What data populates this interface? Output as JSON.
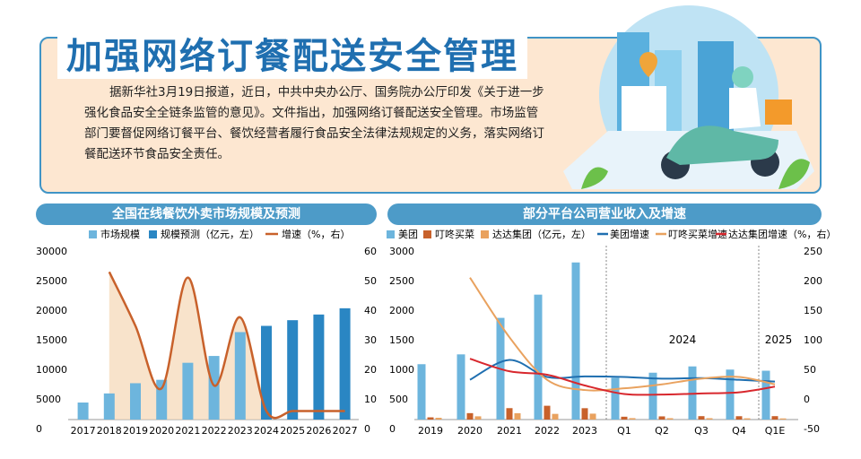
{
  "article": {
    "headline": "加强网络订餐配送安全管理",
    "body": "据新华社3月19日报道，近日，中共中央办公厅、国务院办公厅印发《关于进一步强化食品安全全链条监管的意见》。文件指出，加强网络订餐配送安全管理。市场监管部门要督促网络订餐平台、餐饮经营者履行食品安全法律法规规定的义务，落实网络订餐配送环节食品安全责任。"
  },
  "colors": {
    "blue": "#1f6fb0",
    "light_blue": "#6db5dd",
    "dark_blue": "#2a86c3",
    "orange": "#d98a3d",
    "dark_orange": "#c8612b",
    "red": "#d8272d",
    "peach": "#fde7d1"
  },
  "chart_data": [
    {
      "type": "bar",
      "title": "全国在线餐饮外卖市场规模及预测",
      "legend": [
        "市场规模",
        "规模预测（亿元，左）",
        "增速（%，右）"
      ],
      "categories": [
        "2017",
        "2018",
        "2019",
        "2020",
        "2021",
        "2022",
        "2023",
        "2024",
        "2025",
        "2026",
        "2027"
      ],
      "series": [
        {
          "name": "市场规模",
          "values": [
            3000,
            4600,
            6400,
            7000,
            10000,
            11200,
            15400,
            null,
            null,
            null,
            null
          ]
        },
        {
          "name": "规模预测",
          "values": [
            null,
            null,
            null,
            null,
            null,
            null,
            null,
            16500,
            17500,
            18500,
            19600
          ]
        },
        {
          "name": "增速",
          "axis": "right",
          "values": [
            null,
            52,
            33,
            11,
            50,
            12,
            36,
            3,
            3,
            3,
            3
          ]
        }
      ],
      "y_left_ticks": [
        "30000",
        "25000",
        "20000",
        "15000",
        "10000",
        "5000",
        "0"
      ],
      "y_right_ticks": [
        "60",
        "50",
        "40",
        "30",
        "20",
        "10",
        "0"
      ],
      "ylim_left": [
        0,
        30000
      ],
      "ylim_right": [
        0,
        60
      ]
    },
    {
      "type": "bar",
      "title": "部分平台公司营业收入及增速",
      "legend": [
        "美团",
        "叮咚买菜",
        "达达集团（亿元，左）",
        "美团增速",
        "叮咚买菜增速",
        "达达集团增速（%，右）"
      ],
      "categories": [
        "2019",
        "2020",
        "2021",
        "2022",
        "2023",
        "Q1",
        "Q2",
        "Q3",
        "Q4",
        "Q1E"
      ],
      "group_labels": [
        "2024",
        "2025"
      ],
      "series": [
        {
          "name": "美团",
          "values": [
            975,
            1148,
            1791,
            2200,
            2767,
            735,
            825,
            936,
            880,
            860
          ]
        },
        {
          "name": "叮咚买菜",
          "values": [
            39,
            113,
            201,
            243,
            200,
            50,
            56,
            60,
            59,
            60
          ]
        },
        {
          "name": "达达集团",
          "values": [
            31,
            57,
            112,
            100,
            104,
            25,
            24,
            24,
            22,
            20
          ]
        },
        {
          "name": "美团增速",
          "axis": "right",
          "values": [
            null,
            20,
            55,
            25,
            26,
            25,
            22,
            23,
            20,
            17
          ]
        },
        {
          "name": "叮咚买菜增速",
          "axis": "right",
          "values": [
            null,
            200,
            95,
            20,
            2,
            5,
            12,
            22,
            25,
            12
          ]
        },
        {
          "name": "达达集团增速",
          "axis": "right",
          "values": [
            null,
            57,
            35,
            29,
            10,
            -5,
            -6,
            -4,
            -2,
            8
          ]
        }
      ],
      "y_left_ticks": [
        "3000",
        "2500",
        "2000",
        "1500",
        "1000",
        "500",
        "0"
      ],
      "y_right_ticks": [
        "250",
        "200",
        "150",
        "100",
        "50",
        "0",
        "-50"
      ],
      "ylim_left": [
        0,
        3000
      ],
      "ylim_right": [
        -50,
        250
      ]
    }
  ]
}
